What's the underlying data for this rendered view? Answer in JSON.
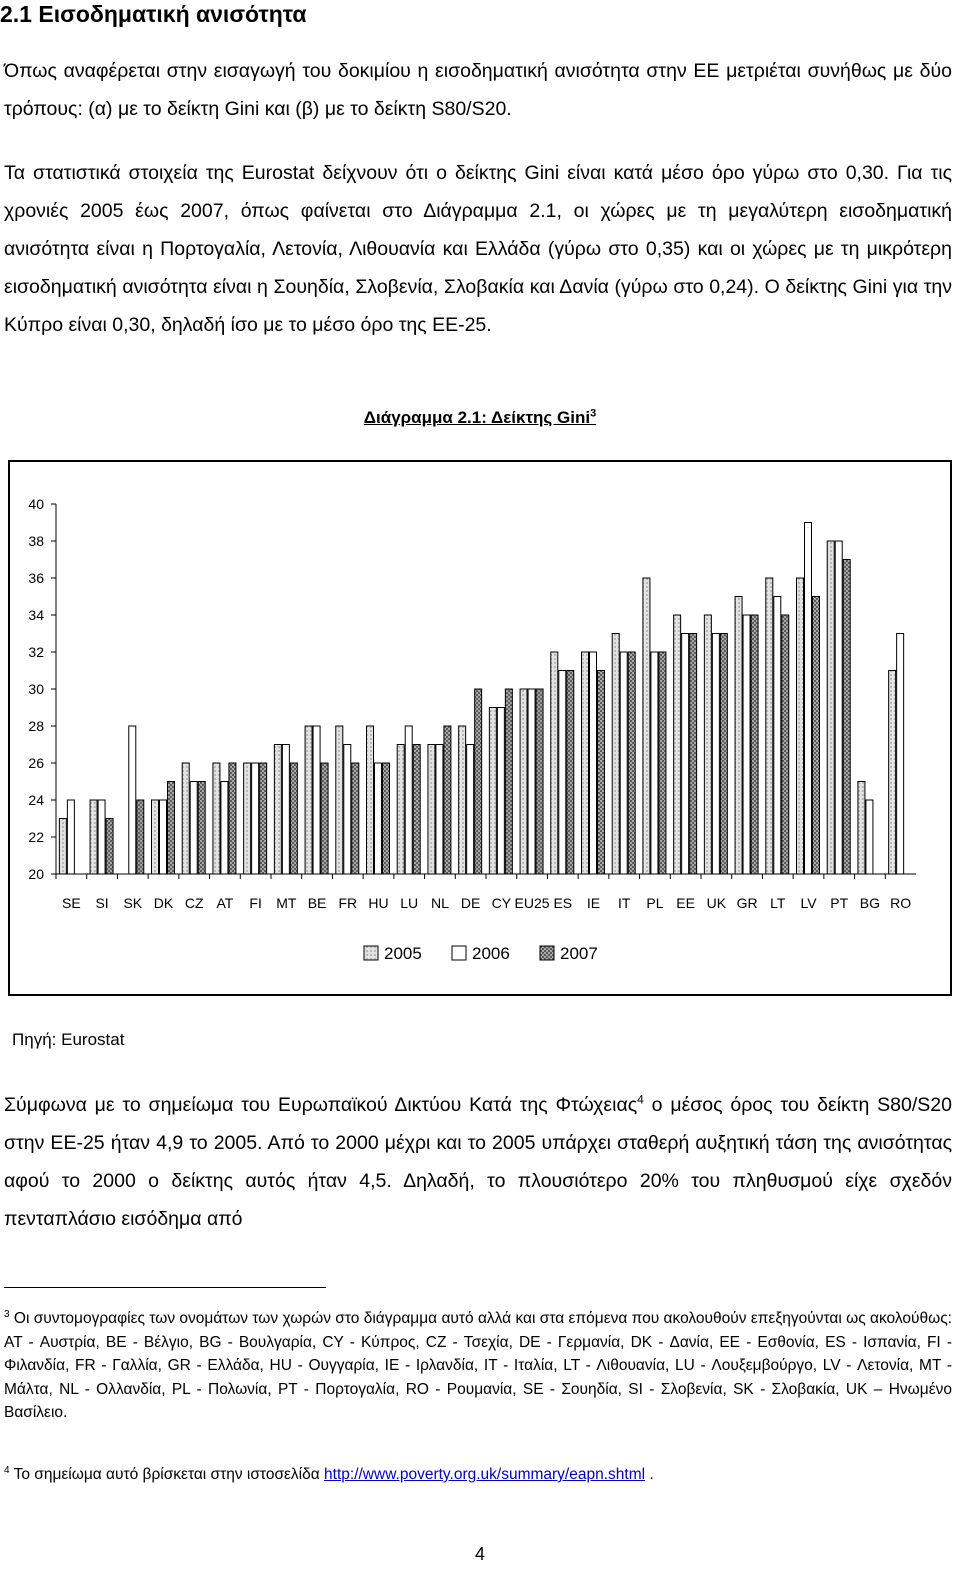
{
  "section_title": "2.1 Εισοδηματική ανισότητα",
  "paragraph1": "Όπως αναφέρεται στην εισαγωγή του δοκιμίου η εισοδηματική ανισότητα στην ΕΕ μετριέται συνήθως με δύο τρόπους: (α) με το δείκτη Gini και (β) με το δείκτη S80/S20.",
  "paragraph2": "Τα στατιστικά στοιχεία της Eurostat δείχνουν ότι ο δείκτης Gini είναι κατά μέσο όρο γύρω στο 0,30. Για τις χρονιές 2005 έως 2007, όπως φαίνεται στο Διάγραμμα 2.1, οι χώρες με τη μεγαλύτερη εισοδηματική ανισότητα είναι η Πορτογαλία, Λετονία, Λιθουανία και Ελλάδα (γύρω στο 0,35) και οι χώρες με τη μικρότερη εισοδηματική ανισότητα είναι η Σουηδία, Σλοβενία, Σλοβακία και Δανία (γύρω στο 0,24). Ο δείκτης Gini για την Κύπρο είναι 0,30, δηλαδή ίσο με το μέσο όρο της ΕΕ-25.",
  "caption": {
    "text": "Διάγραμμα 2.1: Δείκτης Gini",
    "sup": "3"
  },
  "chart_data": {
    "type": "bar",
    "categories": [
      "SE",
      "SI",
      "SK",
      "DK",
      "CZ",
      "AT",
      "FI",
      "MT",
      "BE",
      "FR",
      "HU",
      "LU",
      "NL",
      "DE",
      "CY",
      "EU25",
      "ES",
      "IE",
      "IT",
      "PL",
      "EE",
      "UK",
      "GR",
      "LT",
      "LV",
      "PT",
      "BG",
      "RO"
    ],
    "series": [
      {
        "name": "2005",
        "values": [
          23,
          24,
          null,
          24,
          26,
          26,
          26,
          27,
          28,
          28,
          28,
          27,
          27,
          28,
          29,
          30,
          32,
          32,
          33,
          36,
          34,
          34,
          35,
          36,
          36,
          38,
          25,
          31
        ]
      },
      {
        "name": "2006",
        "values": [
          24,
          24,
          28,
          24,
          25,
          25,
          26,
          27,
          28,
          27,
          26,
          28,
          27,
          27,
          29,
          30,
          31,
          32,
          32,
          32,
          33,
          33,
          34,
          35,
          39,
          38,
          24,
          33
        ]
      },
      {
        "name": "2007",
        "values": [
          null,
          23,
          24,
          25,
          25,
          26,
          26,
          26,
          26,
          26,
          26,
          27,
          28,
          30,
          30,
          30,
          31,
          31,
          32,
          32,
          33,
          33,
          34,
          34,
          35,
          37,
          null,
          null
        ]
      }
    ],
    "ylim": [
      20,
      40
    ],
    "yticks": [
      20,
      22,
      24,
      26,
      28,
      30,
      32,
      34,
      36,
      38,
      40
    ],
    "grid": false,
    "legend": "bottom-center",
    "colors": {
      "2005": "#d8d8d8",
      "2006": "#ffffff",
      "2007": "#7a7a7a"
    }
  },
  "source": "Πηγή: Eurostat",
  "paragraph3": {
    "before": "Σύμφωνα με το σημείωμα του Ευρωπαϊκού Δικτύου Κατά της Φτώχειας",
    "sup": "4",
    "after": " ο μέσος όρος του δείκτη S80/S20 στην ΕΕ-25 ήταν 4,9 το 2005. Από το 2000 μέχρι και το 2005 υπάρχει σταθερή αυξητική τάση της ανισότητας αφού το 2000 ο δείκτης αυτός ήταν 4,5. Δηλαδή, το πλουσιότερο 20% του πληθυσμού είχε σχεδόν πενταπλάσιο εισόδημα από"
  },
  "footnote3": {
    "num": "3",
    "text": " Οι συντομογραφίες των ονομάτων των χωρών στο διάγραμμα αυτό αλλά και στα επόμενα που ακολουθούν επεξηγούνται ως ακολούθως: AT - Αυστρία, BE - Βέλγιο, BG - Βουλγαρία, CY - Κύπρος, CZ - Τσεχία, DE - Γερμανία, DK - Δανία, EE - Εσθονία, ES - Ισπανία, FI - Φιλανδία, FR - Γαλλία, GR - Ελλάδα, HU - Ουγγαρία, IE - Ιρλανδία, IT - Ιταλία, LT - Λιθουανία, LU - Λουξεμβούργο, LV - Λετονία, MT - Μάλτα, NL - Ολλανδία, PL - Πολωνία, PT - Πορτογαλία, RO - Ρουμανία, SE - Σουηδία, SI - Σλοβενία, SK - Σλοβακία, UK – Ηνωμένο Βασίλειο."
  },
  "footnote4": {
    "num": "4",
    "text": " Το σημείωμα αυτό βρίσκεται στην ιστοσελίδα ",
    "link": "http://www.poverty.org.uk/summary/eapn.shtml",
    "end": " ."
  },
  "page_number": "4"
}
